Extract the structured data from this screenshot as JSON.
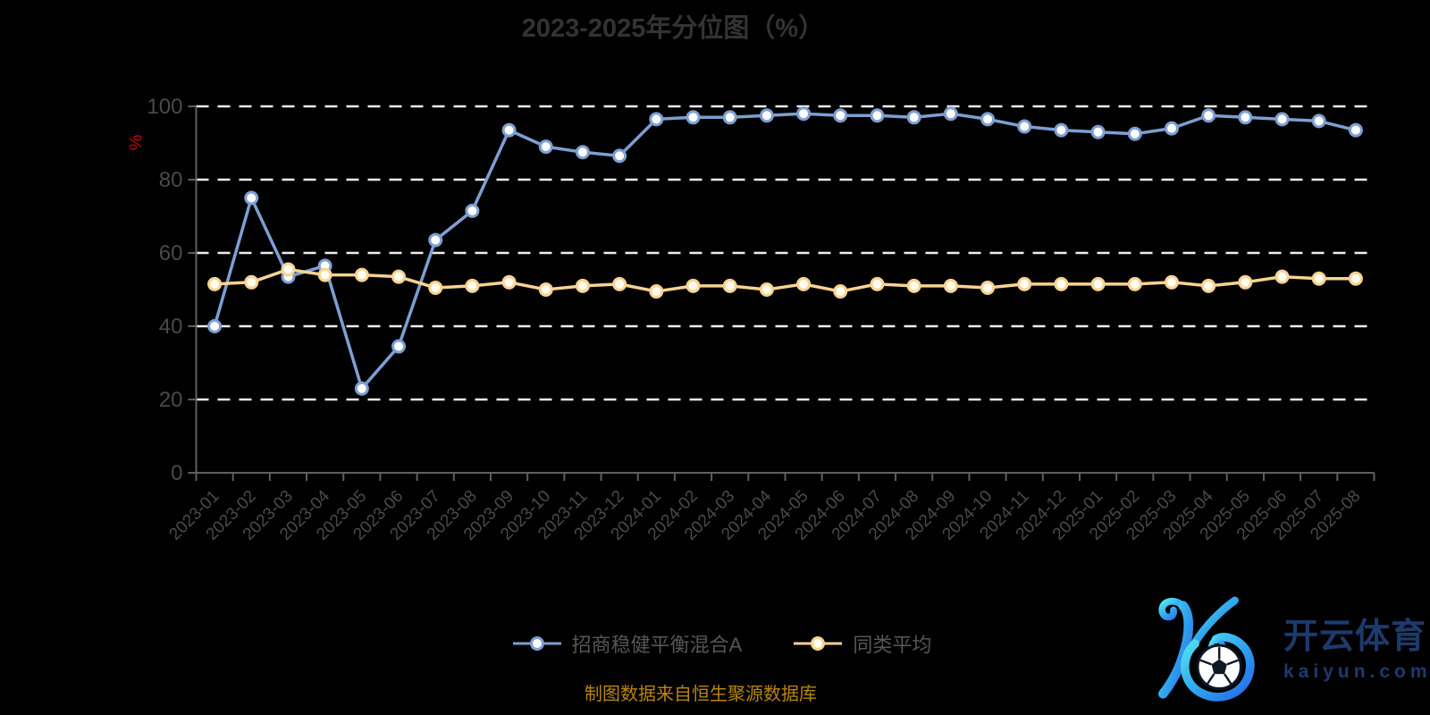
{
  "title": "2023-2025年分位图（%）",
  "footer": "制图数据来自恒生聚源数据库",
  "logo": {
    "brand": "开云体育",
    "domain": "kaiyun.com"
  },
  "colors": {
    "background": "#000000",
    "title_text": "#333333",
    "axis_unit_text": "#c80000",
    "footer_text": "#b8860b",
    "logo_text": "#1d3a6b",
    "logo_gradient_start": "#55e5f1",
    "logo_gradient_end": "#2667e8"
  },
  "chart_data": {
    "type": "line",
    "title": "2023-2025年分位图（%）",
    "xlabel": "",
    "ylabel": "%",
    "ylim": [
      0,
      100
    ],
    "y_ticks": [
      0,
      20,
      40,
      60,
      80,
      100
    ],
    "grid": "horizontal dashed",
    "legend_position": "bottom",
    "grid_color": "#eeeeee",
    "axis_color": "#5f5f5f",
    "label_color": "#4a4a4a",
    "categories": [
      "2023-01",
      "2023-02",
      "2023-03",
      "2023-04",
      "2023-05",
      "2023-06",
      "2023-07",
      "2023-08",
      "2023-09",
      "2023-10",
      "2023-11",
      "2023-12",
      "2024-01",
      "2024-02",
      "2024-03",
      "2024-04",
      "2024-05",
      "2024-06",
      "2024-07",
      "2024-08",
      "2024-09",
      "2024-10",
      "2024-11",
      "2024-12",
      "2025-01",
      "2025-02",
      "2025-03",
      "2025-04",
      "2025-05",
      "2025-06",
      "2025-07",
      "2025-08"
    ],
    "series": [
      {
        "name": "招商稳健平衡混合A",
        "color": "#7d9fd2",
        "marker_fill": "#ffffff",
        "values": [
          40,
          75,
          53.5,
          56.5,
          23,
          34.5,
          63.5,
          71.5,
          93.5,
          89,
          87.5,
          86.5,
          96.5,
          97,
          97,
          97.5,
          98,
          97.5,
          97.5,
          97,
          98,
          96.5,
          94.5,
          93.5,
          93,
          92.5,
          94,
          97.5,
          97,
          96.5,
          96,
          93.5
        ]
      },
      {
        "name": "同类平均",
        "color": "#f8d391",
        "marker_fill": "#fffcf1",
        "values": [
          51.5,
          52,
          55.5,
          54,
          54,
          53.5,
          50.5,
          51,
          52,
          50,
          51,
          51.5,
          49.5,
          51,
          51,
          50,
          51.5,
          49.5,
          51.5,
          51,
          51,
          50.5,
          51.5,
          51.5,
          51.5,
          51.5,
          52,
          51,
          52,
          53.5,
          53,
          53
        ]
      }
    ]
  }
}
